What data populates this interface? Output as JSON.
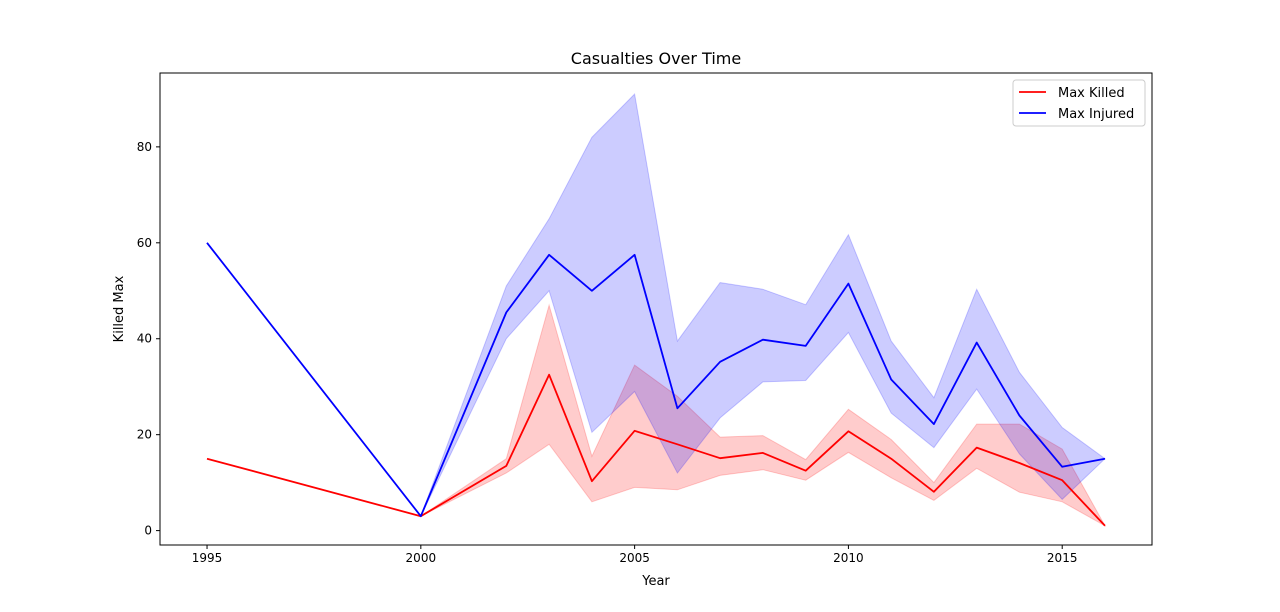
{
  "chart_data": {
    "type": "line",
    "title": "Casualties Over Time",
    "xlabel": "Year",
    "ylabel": "Killed Max",
    "xlim": [
      1993.9,
      2017.1
    ],
    "ylim": [
      -3,
      95.4
    ],
    "xticks": [
      1995,
      2000,
      2005,
      2010,
      2015
    ],
    "yticks": [
      0,
      20,
      40,
      60,
      80
    ],
    "grid": false,
    "legend_position": "top-right",
    "x": [
      1995,
      2000,
      2002,
      2003,
      2004,
      2005,
      2006,
      2007,
      2008,
      2009,
      2010,
      2011,
      2012,
      2013,
      2014,
      2015,
      2016
    ],
    "series": [
      {
        "name": "Max Killed",
        "color": "#ff0000",
        "values": [
          15,
          3,
          13.5,
          32.5,
          10.3,
          20.8,
          18,
          15.1,
          16.2,
          12.5,
          20.7,
          15,
          8.1,
          17.3,
          14.1,
          10.5,
          1
        ],
        "band_lower": [
          15,
          3,
          12,
          18,
          6,
          9,
          8.5,
          11.5,
          12.7,
          10.5,
          16.3,
          11,
          6.3,
          13,
          8,
          6,
          1
        ],
        "band_upper": [
          15,
          3,
          15,
          47,
          15.5,
          34.5,
          28,
          19.5,
          19.8,
          14.8,
          25.3,
          19,
          10,
          22.2,
          22.2,
          17,
          1
        ]
      },
      {
        "name": "Max Injured",
        "color": "#0000ff",
        "values": [
          60,
          3,
          45.5,
          57.5,
          50,
          57.5,
          25.5,
          35.2,
          39.8,
          38.5,
          51.5,
          31.5,
          22.2,
          39.2,
          24,
          13.3,
          15
        ],
        "band_lower": [
          60,
          3,
          40,
          50,
          20.5,
          29,
          12,
          23.5,
          31,
          31.3,
          41.3,
          24.5,
          17.3,
          29.5,
          16,
          6.5,
          15
        ],
        "band_upper": [
          60,
          3,
          51,
          65,
          82,
          91,
          39.5,
          51.7,
          50.3,
          47.1,
          61.7,
          39.5,
          27.7,
          50.3,
          33,
          21.5,
          15
        ]
      }
    ]
  }
}
